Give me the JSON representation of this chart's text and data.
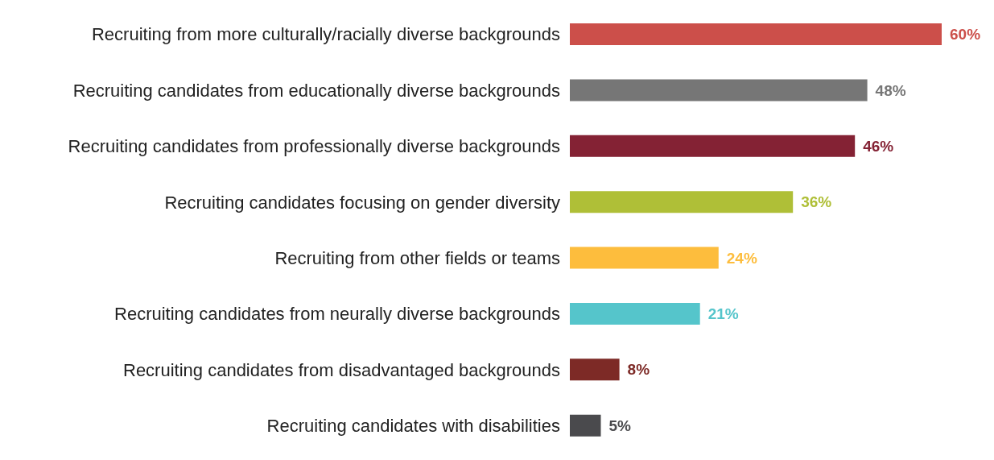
{
  "chart_data": {
    "type": "bar",
    "orientation": "horizontal",
    "categories": [
      "Recruiting from more culturally/racially diverse backgrounds",
      "Recruiting candidates from educationally diverse backgrounds",
      "Recruiting candidates from professionally diverse backgrounds",
      "Recruiting candidates focusing on gender diversity",
      "Recruiting from other fields or teams",
      "Recruiting candidates from neurally diverse backgrounds",
      "Recruiting candidates from disadvantaged backgrounds",
      "Recruiting candidates with disabilities"
    ],
    "values": [
      60,
      48,
      46,
      36,
      24,
      21,
      8,
      5
    ],
    "colors": [
      "#cc4f4a",
      "#767676",
      "#842234",
      "#afbf37",
      "#fdbd3d",
      "#55c5cb",
      "#7d2a26",
      "#4a4a4d"
    ],
    "value_labels": [
      "60%",
      "48%",
      "46%",
      "36%",
      "24%",
      "21%",
      "8%",
      "5%"
    ],
    "grid": false,
    "legend": false
  }
}
